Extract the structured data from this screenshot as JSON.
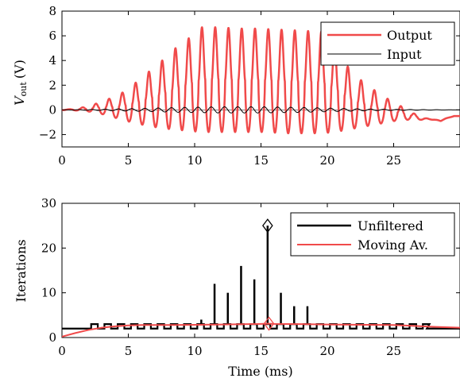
{
  "chart_data": [
    {
      "type": "line",
      "title": "",
      "xlabel": "",
      "ylabel": "V",
      "ylabel_sub": "out",
      "ylabel_unit": "(V)",
      "xlim": [
        0,
        30
      ],
      "ylim": [
        -3,
        8
      ],
      "xticks": [
        0,
        5,
        10,
        15,
        20,
        25
      ],
      "yticks": [
        -2,
        0,
        2,
        4,
        6,
        8
      ],
      "grid": false,
      "legend_position": "top-right",
      "series": [
        {
          "name": "Output",
          "color": "#f04a4a",
          "kind": "oscillation",
          "period_ms": 1.0,
          "first_peak_ms": 0.55,
          "peak_times_ms": [
            0.55,
            1.55,
            2.55,
            3.55,
            4.55,
            5.55,
            6.55,
            7.55,
            8.55,
            9.55,
            10.55,
            11.55,
            12.55,
            13.55,
            14.55,
            15.55,
            16.55,
            17.55,
            18.55,
            19.55,
            20.55,
            21.55,
            22.55,
            23.55,
            24.55,
            25.55,
            26.55,
            27.55,
            28.55,
            29.55
          ],
          "peaks": [
            0.05,
            0.2,
            0.5,
            0.9,
            1.4,
            2.2,
            3.1,
            4.0,
            5.0,
            5.8,
            6.7,
            6.7,
            6.65,
            6.6,
            6.6,
            6.55,
            6.5,
            6.45,
            6.4,
            6.35,
            5.3,
            3.5,
            2.4,
            1.6,
            0.9,
            0.3,
            -0.3,
            -0.7,
            -0.9,
            -0.5
          ],
          "troughs": [
            -0.02,
            -0.08,
            -0.2,
            -0.5,
            -0.8,
            -1.1,
            -1.3,
            -1.5,
            -1.6,
            -1.7,
            -1.8,
            -1.8,
            -1.8,
            -1.8,
            -1.8,
            -1.8,
            -1.9,
            -1.9,
            -1.9,
            -1.9,
            -1.8,
            -1.6,
            -1.4,
            -1.2,
            -1.0,
            -0.8,
            -0.8,
            -0.8,
            -0.8,
            -0.5
          ]
        },
        {
          "name": "Input",
          "color": "#000000",
          "kind": "sine",
          "period_ms": 1.0,
          "amplitude": [
            0.0,
            0.05,
            0.12,
            0.2,
            0.25,
            0.25,
            0.2,
            0.12,
            0.05,
            0.0
          ],
          "amplitude_times_ms": [
            0,
            3,
            6,
            9,
            12,
            15,
            18,
            21,
            24,
            30
          ]
        }
      ]
    },
    {
      "type": "line",
      "title": "",
      "xlabel": "Time (ms)",
      "ylabel": "Iterations",
      "xlim": [
        0,
        30
      ],
      "ylim": [
        0,
        30
      ],
      "xticks": [
        0,
        5,
        10,
        15,
        20,
        25
      ],
      "yticks": [
        0,
        10,
        20,
        30
      ],
      "grid": false,
      "legend_position": "top-right",
      "series": [
        {
          "name": "Unfiltered",
          "color": "#000000",
          "kind": "steps",
          "baseline": 2,
          "step_value": 3,
          "step_start_ms": 2.2,
          "step_end_ms": 27.5,
          "spikes": [
            {
              "x": 10.5,
              "y": 4
            },
            {
              "x": 11.5,
              "y": 12
            },
            {
              "x": 12.5,
              "y": 10
            },
            {
              "x": 13.5,
              "y": 16
            },
            {
              "x": 14.5,
              "y": 13
            },
            {
              "x": 15.5,
              "y": 25
            },
            {
              "x": 16.5,
              "y": 10
            },
            {
              "x": 17.5,
              "y": 7
            },
            {
              "x": 18.5,
              "y": 7
            }
          ],
          "max_marker": {
            "x": 15.5,
            "y": 25
          }
        },
        {
          "name": "Moving Av.",
          "color": "#f04a4a",
          "x": [
            0,
            1,
            2,
            3,
            4,
            5,
            6,
            8,
            10,
            12,
            14,
            15,
            15.5,
            16,
            18,
            20,
            25,
            28,
            30
          ],
          "y": [
            0.2,
            1.0,
            1.7,
            2.2,
            2.5,
            2.7,
            2.8,
            2.8,
            2.85,
            2.9,
            3.0,
            3.05,
            3.1,
            3.05,
            3.0,
            2.9,
            2.8,
            2.4,
            2.2
          ],
          "max_marker": {
            "x": 15.6,
            "y": 3.1
          }
        }
      ]
    }
  ]
}
